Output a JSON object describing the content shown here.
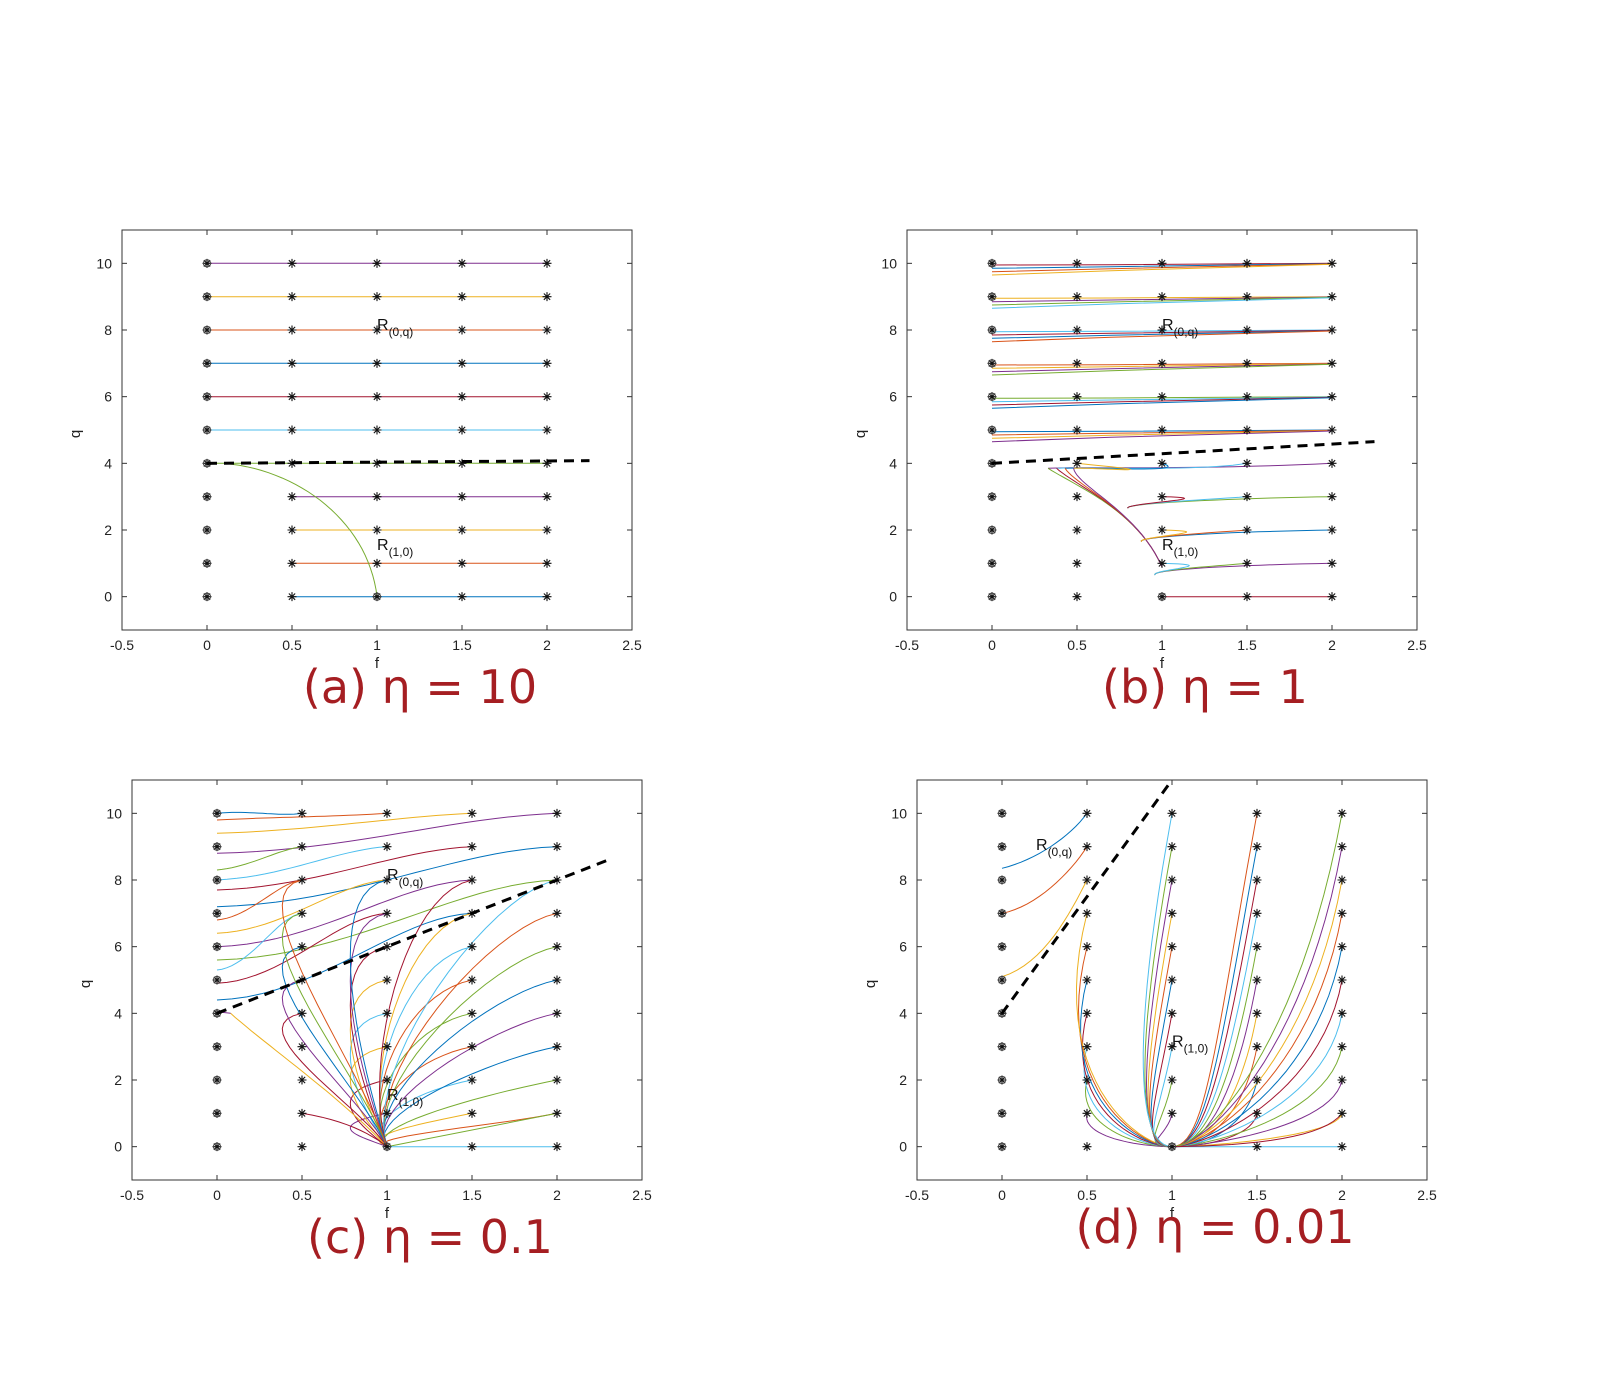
{
  "chart_data": [
    {
      "type": "line",
      "caption": "(a) η = 10",
      "xlabel": "f",
      "ylabel": "q",
      "xlim": [
        -0.5,
        2.5
      ],
      "ylim": [
        -1,
        11
      ],
      "xticks": [
        -0.5,
        0,
        0.5,
        1,
        1.5,
        2,
        2.5
      ],
      "yticks": [
        0,
        2,
        4,
        6,
        8,
        10
      ],
      "xtick_labels": [
        "-0.5",
        "0",
        "0.5",
        "1",
        "1.5",
        "2",
        "2.5"
      ],
      "ytick_labels": [
        "0",
        "2",
        "4",
        "6",
        "8",
        "10"
      ],
      "dashed_line": [
        [
          0,
          4
        ],
        [
          2.25,
          4.08
        ]
      ],
      "start_points_f": [
        0.5,
        1,
        1.5,
        2
      ],
      "start_points_q": [
        0,
        1,
        2,
        3,
        4,
        5,
        6,
        7,
        8,
        9,
        10
      ],
      "endpoints_q0": [
        4,
        5,
        6,
        7,
        8,
        9,
        10
      ],
      "annotations": [
        {
          "text": "R",
          "sub": "(0,q)",
          "x": 1.0,
          "y": 8.0
        },
        {
          "text": "R",
          "sub": "(1,0)",
          "x": 1.0,
          "y": 1.4
        }
      ],
      "separatrix": [
        [
          0.1,
          4.0
        ],
        [
          0.5,
          3.6
        ],
        [
          0.8,
          2.6
        ],
        [
          0.95,
          1.2
        ],
        [
          1.0,
          0
        ]
      ]
    },
    {
      "type": "line",
      "caption": "(b) η = 1",
      "xlabel": "f",
      "ylabel": "q",
      "xlim": [
        -0.5,
        2.5
      ],
      "ylim": [
        -1,
        11
      ],
      "xticks": [
        -0.5,
        0,
        0.5,
        1,
        1.5,
        2,
        2.5
      ],
      "yticks": [
        0,
        2,
        4,
        6,
        8,
        10
      ],
      "xtick_labels": [
        "-0.5",
        "0",
        "0.5",
        "1",
        "1.5",
        "2",
        "2.5"
      ],
      "ytick_labels": [
        "0",
        "2",
        "4",
        "6",
        "8",
        "10"
      ],
      "dashed_line": [
        [
          0,
          4
        ],
        [
          2.25,
          4.65
        ]
      ],
      "start_points_f": [
        0.5,
        1,
        1.5,
        2
      ],
      "start_points_q": [
        0,
        1,
        2,
        3,
        4,
        5,
        6,
        7,
        8,
        9,
        10
      ],
      "annotations": [
        {
          "text": "R",
          "sub": "(0,q)",
          "x": 1.0,
          "y": 8.0
        },
        {
          "text": "R",
          "sub": "(1,0)",
          "x": 1.0,
          "y": 1.4
        }
      ]
    },
    {
      "type": "line",
      "caption": "(c) η = 0.1",
      "xlabel": "f",
      "ylabel": "q",
      "xlim": [
        -0.5,
        2.5
      ],
      "ylim": [
        -1,
        11
      ],
      "xticks": [
        -0.5,
        0,
        0.5,
        1,
        1.5,
        2,
        2.5
      ],
      "yticks": [
        0,
        2,
        4,
        6,
        8,
        10
      ],
      "xtick_labels": [
        "-0.5",
        "0",
        "0.5",
        "1",
        "1.5",
        "2",
        "2.5"
      ],
      "ytick_labels": [
        "0",
        "2",
        "4",
        "6",
        "8",
        "10"
      ],
      "dashed_line": [
        [
          0,
          4
        ],
        [
          2.3,
          8.6
        ]
      ],
      "start_points_f": [
        0.5,
        1,
        1.5,
        2
      ],
      "start_points_q": [
        0,
        1,
        2,
        3,
        4,
        5,
        6,
        7,
        8,
        9,
        10
      ],
      "annotations": [
        {
          "text": "R",
          "sub": "(0,q)",
          "x": 1.0,
          "y": 8.0
        },
        {
          "text": "R",
          "sub": "(1,0)",
          "x": 1.0,
          "y": 1.4
        }
      ]
    },
    {
      "type": "line",
      "caption": "(d) η = 0.01",
      "xlabel": "f",
      "ylabel": "q",
      "xlim": [
        -0.5,
        2.5
      ],
      "ylim": [
        -1,
        11
      ],
      "xticks": [
        -0.5,
        0,
        0.5,
        1,
        1.5,
        2,
        2.5
      ],
      "yticks": [
        0,
        2,
        4,
        6,
        8,
        10
      ],
      "xtick_labels": [
        "-0.5",
        "0",
        "0.5",
        "1",
        "1.5",
        "2",
        "2.5"
      ],
      "ytick_labels": [
        "0",
        "2",
        "4",
        "6",
        "8",
        "10"
      ],
      "dashed_line": [
        [
          0,
          4
        ],
        [
          1.0,
          11.0
        ]
      ],
      "start_points_f": [
        0.5,
        1,
        1.5,
        2
      ],
      "start_points_q": [
        0,
        1,
        2,
        3,
        4,
        5,
        6,
        7,
        8,
        9,
        10
      ],
      "annotations": [
        {
          "text": "R",
          "sub": "(0,q)",
          "x": 0.2,
          "y": 8.9
        },
        {
          "text": "R",
          "sub": "(1,0)",
          "x": 1.0,
          "y": 3.0
        }
      ]
    }
  ],
  "palette": [
    "#0072BD",
    "#D95319",
    "#EDB120",
    "#7E2F8E",
    "#77AC30",
    "#4DBEEE",
    "#A2142F"
  ],
  "caption_color": "#a51e22"
}
